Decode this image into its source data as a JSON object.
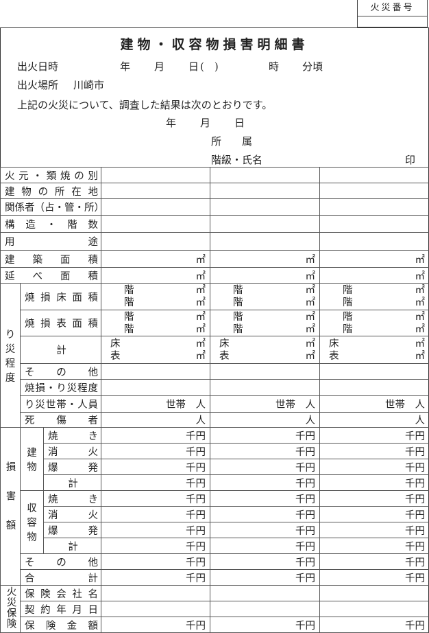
{
  "fire_number_label": "火災番号",
  "title": "建物・収容物損害明細書",
  "header": {
    "fire_datetime_label": "出火日時",
    "year": "年",
    "month": "月",
    "day": "日",
    "weekday_parens": "(　)",
    "hour": "時",
    "minute_approx": "分頃",
    "fire_place_label": "出火場所",
    "fire_place_value": "川崎市",
    "statement": "上記の火災について、調査した結果は次のとおりです。",
    "affiliation_label": "所　　属",
    "rank_name_label": "階級・氏名",
    "seal": "印"
  },
  "table": {
    "simple_rows": [
      {
        "label": "火元・類焼の別"
      },
      {
        "label": "建物の所在地"
      },
      {
        "label": "関係者（占・管・所）"
      },
      {
        "label": "構造・階数"
      },
      {
        "label": "用途"
      },
      {
        "label": "建築面積",
        "unit": "㎡"
      },
      {
        "label": "延べ面積",
        "unit": "㎡"
      }
    ],
    "damage_extent": {
      "group": "り災程度",
      "rows": [
        {
          "label": "焼損床面積",
          "lines": [
            [
              "階",
              "㎡"
            ],
            [
              "階",
              "㎡"
            ]
          ]
        },
        {
          "label": "焼損表面積",
          "lines": [
            [
              "階",
              "㎡"
            ],
            [
              "階",
              "㎡"
            ]
          ]
        },
        {
          "label": "計",
          "lines": [
            [
              "床",
              "㎡"
            ],
            [
              "表",
              "㎡"
            ]
          ]
        },
        {
          "label": "その他"
        },
        {
          "label": "焼損・り災程度"
        },
        {
          "label": "り災世帯・人員",
          "unit": "世帯　人"
        },
        {
          "label": "死傷者",
          "unit": "人"
        }
      ]
    },
    "loss": {
      "group": "損害額",
      "unit": "千円",
      "subgroups": [
        {
          "label": "建物",
          "rows": [
            "焼き",
            "消火",
            "爆発",
            "計"
          ]
        },
        {
          "label": "収容物",
          "rows": [
            "焼き",
            "消火",
            "爆発",
            "計"
          ]
        }
      ],
      "other": "その他",
      "total": "合計"
    },
    "insurance": {
      "group": "火災保険",
      "rows": [
        {
          "label": "保険会社名"
        },
        {
          "label": "契約年月日"
        },
        {
          "label": "保険金額",
          "unit": "千円"
        }
      ]
    }
  }
}
